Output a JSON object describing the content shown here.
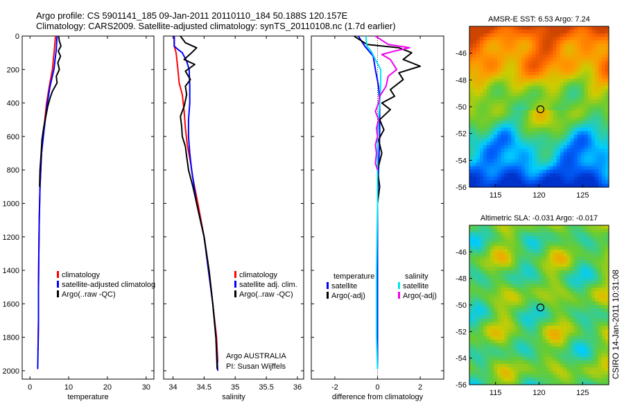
{
  "header": {
    "line1": "Argo profile: CS 5901141_185 09-Jan-2011 20110110_184 50.188S 120.157E",
    "line2": "Climatology: CARS2009. Satellite-adjusted climatology: synTS_20110108.nc (1.7d earlier)"
  },
  "side_text": "CSIRO 14-Jan-2011 10:31:08",
  "chart_data": [
    {
      "id": "temperature",
      "type": "line",
      "xlabel": "temperature",
      "xticks": [
        0,
        10,
        20,
        30
      ],
      "xlim": [
        -2,
        32
      ],
      "yticks": [
        0,
        200,
        400,
        600,
        800,
        1000,
        1200,
        1400,
        1600,
        1800,
        2000
      ],
      "ylim": [
        2050,
        0
      ],
      "legend": [
        "climatology",
        "satellite-adjusted climatolog",
        "Argo(..raw -QC)"
      ],
      "series": [
        {
          "name": "climatology",
          "color": "#ff0000",
          "points": [
            [
              6.6,
              0
            ],
            [
              6.3,
              80
            ],
            [
              5.8,
              200
            ],
            [
              5.0,
              300
            ],
            [
              4.3,
              400
            ],
            [
              3.6,
              550
            ],
            [
              3.0,
              700
            ],
            [
              2.6,
              900
            ],
            [
              2.4,
              1100
            ],
            [
              2.3,
              1300
            ],
            [
              2.2,
              1500
            ],
            [
              2.2,
              1700
            ],
            [
              2.1,
              1880
            ]
          ]
        },
        {
          "name": "satellite-adjusted climatolog",
          "color": "#0000ff",
          "points": [
            [
              7.0,
              0
            ],
            [
              6.8,
              80
            ],
            [
              6.2,
              200
            ],
            [
              5.2,
              300
            ],
            [
              4.5,
              400
            ],
            [
              3.7,
              550
            ],
            [
              3.0,
              700
            ],
            [
              2.6,
              900
            ],
            [
              2.4,
              1100
            ],
            [
              2.3,
              1300
            ],
            [
              2.2,
              1500
            ],
            [
              2.2,
              1700
            ],
            [
              2.0,
              1990
            ]
          ]
        },
        {
          "name": "Argo(..raw -QC)",
          "color": "#000000",
          "points": [
            [
              7.4,
              0
            ],
            [
              7.6,
              30
            ],
            [
              8.0,
              60
            ],
            [
              7.3,
              90
            ],
            [
              7.9,
              120
            ],
            [
              7.2,
              160
            ],
            [
              7.6,
              200
            ],
            [
              6.8,
              240
            ],
            [
              7.0,
              280
            ],
            [
              5.8,
              330
            ],
            [
              5.2,
              370
            ],
            [
              4.6,
              420
            ],
            [
              4.1,
              480
            ],
            [
              3.6,
              540
            ],
            [
              3.1,
              620
            ],
            [
              2.9,
              700
            ],
            [
              2.6,
              800
            ],
            [
              2.5,
              900
            ]
          ]
        }
      ]
    },
    {
      "id": "salinity",
      "type": "line",
      "xlabel": "salinity",
      "xticks": [
        34,
        34.5,
        35,
        35.5,
        36
      ],
      "xlim": [
        33.85,
        36.1
      ],
      "yticks": [
        0,
        200,
        400,
        600,
        800,
        1000,
        1200,
        1400,
        1600,
        1800,
        2000
      ],
      "ylim": [
        2050,
        0
      ],
      "legend": [
        "climatology",
        "satellite adj. clim.",
        "Argo(..raw -QC)"
      ],
      "annotation": [
        "Argo AUSTRALIA",
        "PI: Susan Wijffels"
      ],
      "series": [
        {
          "name": "climatology",
          "color": "#ff0000",
          "points": [
            [
              34.02,
              0
            ],
            [
              34.02,
              60
            ],
            [
              34.05,
              100
            ],
            [
              34.08,
              200
            ],
            [
              34.1,
              280
            ],
            [
              34.15,
              350
            ],
            [
              34.18,
              450
            ],
            [
              34.2,
              550
            ],
            [
              34.23,
              650
            ],
            [
              34.28,
              750
            ],
            [
              34.32,
              850
            ],
            [
              34.4,
              1000
            ],
            [
              34.5,
              1200
            ],
            [
              34.58,
              1400
            ],
            [
              34.64,
              1600
            ],
            [
              34.7,
              1800
            ],
            [
              34.72,
              1950
            ]
          ]
        },
        {
          "name": "satellite adj. clim.",
          "color": "#0000ff",
          "points": [
            [
              34.02,
              0
            ],
            [
              34.02,
              60
            ],
            [
              34.08,
              80
            ],
            [
              34.15,
              100
            ],
            [
              34.22,
              150
            ],
            [
              34.26,
              200
            ],
            [
              34.27,
              300
            ],
            [
              34.27,
              400
            ],
            [
              34.25,
              500
            ],
            [
              34.25,
              600
            ],
            [
              34.27,
              700
            ],
            [
              34.3,
              800
            ],
            [
              34.38,
              1000
            ],
            [
              34.5,
              1200
            ],
            [
              34.57,
              1400
            ],
            [
              34.64,
              1600
            ],
            [
              34.69,
              1800
            ],
            [
              34.72,
              2000
            ]
          ]
        },
        {
          "name": "Argo(..raw -QC)",
          "color": "#000000",
          "points": [
            [
              34.12,
              0
            ],
            [
              34.2,
              40
            ],
            [
              34.38,
              70
            ],
            [
              34.3,
              100
            ],
            [
              34.18,
              140
            ],
            [
              34.35,
              170
            ],
            [
              34.2,
              210
            ],
            [
              34.28,
              260
            ],
            [
              34.2,
              300
            ],
            [
              34.22,
              350
            ],
            [
              34.18,
              420
            ],
            [
              34.12,
              480
            ],
            [
              34.14,
              540
            ],
            [
              34.15,
              600
            ],
            [
              34.2,
              660
            ],
            [
              34.22,
              720
            ],
            [
              34.25,
              800
            ],
            [
              34.32,
              900
            ],
            [
              34.38,
              1000
            ],
            [
              34.5,
              1200
            ],
            [
              34.58,
              1400
            ],
            [
              34.64,
              1600
            ],
            [
              34.69,
              1800
            ],
            [
              34.71,
              1990
            ]
          ]
        }
      ]
    },
    {
      "id": "difference",
      "type": "line",
      "xlabel": "difference from climatology",
      "xticks": [
        -2,
        0,
        2
      ],
      "xlim": [
        -3.1,
        3.1
      ],
      "yticks": [
        0,
        200,
        400,
        600,
        800,
        1000,
        1200,
        1400,
        1600,
        1800,
        2000
      ],
      "ylim": [
        2050,
        0
      ],
      "legend_groups": [
        {
          "title": "temperature",
          "items": [
            "satellite",
            "Argo(-adj)"
          ]
        },
        {
          "title": "salinity",
          "items": [
            "satellite",
            "Argo(-adj)"
          ]
        }
      ],
      "series": [
        {
          "name": "temperature satellite",
          "color": "#0000ff",
          "points": [
            [
              -0.9,
              0
            ],
            [
              -0.6,
              60
            ],
            [
              -0.2,
              120
            ],
            [
              -0.1,
              200
            ],
            [
              0.05,
              300
            ],
            [
              0.1,
              400
            ],
            [
              0.1,
              600
            ],
            [
              0.05,
              800
            ],
            [
              0,
              1000
            ],
            [
              0,
              1400
            ],
            [
              0,
              1800
            ],
            [
              0,
              1990
            ]
          ]
        },
        {
          "name": "temperature Argo(-adj)",
          "color": "#000000",
          "points": [
            [
              -1.1,
              0
            ],
            [
              -0.5,
              50
            ],
            [
              1.0,
              70
            ],
            [
              1.6,
              100
            ],
            [
              1.2,
              140
            ],
            [
              2.0,
              180
            ],
            [
              1.0,
              220
            ],
            [
              1.2,
              260
            ],
            [
              0.6,
              320
            ],
            [
              0.8,
              360
            ],
            [
              0.2,
              400
            ],
            [
              0.6,
              440
            ],
            [
              0.1,
              500
            ],
            [
              0.3,
              560
            ],
            [
              0.05,
              620
            ],
            [
              0.2,
              700
            ],
            [
              0,
              800
            ],
            [
              0.1,
              900
            ],
            [
              0,
              1000
            ]
          ]
        },
        {
          "name": "salinity satellite",
          "color": "#00e5ee",
          "points": [
            [
              -0.55,
              0
            ],
            [
              -0.5,
              60
            ],
            [
              -0.3,
              90
            ],
            [
              -0.1,
              140
            ],
            [
              0.15,
              200
            ],
            [
              0.15,
              300
            ],
            [
              0.1,
              400
            ],
            [
              0.05,
              500
            ],
            [
              0,
              600
            ],
            [
              0,
              800
            ],
            [
              0,
              1000
            ],
            [
              -0.05,
              1400
            ],
            [
              -0.05,
              1800
            ],
            [
              0,
              1990
            ]
          ]
        },
        {
          "name": "salinity Argo(-adj)",
          "color": "#ee00ee",
          "points": [
            [
              -0.1,
              0
            ],
            [
              0.5,
              50
            ],
            [
              1.5,
              70
            ],
            [
              0.8,
              90
            ],
            [
              0.2,
              110
            ],
            [
              0.6,
              140
            ],
            [
              0.9,
              200
            ],
            [
              0.5,
              240
            ],
            [
              0.4,
              300
            ],
            [
              0.1,
              360
            ],
            [
              0.05,
              400
            ],
            [
              -0.1,
              450
            ],
            [
              0.05,
              500
            ],
            [
              -0.05,
              550
            ],
            [
              0,
              600
            ],
            [
              -0.1,
              650
            ],
            [
              -0.05,
              700
            ],
            [
              -0.1,
              760
            ],
            [
              0,
              800
            ]
          ]
        }
      ]
    },
    {
      "id": "sst_map",
      "type": "heatmap",
      "title": "AMSR-E SST: 6.53 Argo: 7.24",
      "xticks": [
        115,
        120,
        125
      ],
      "xlim": [
        112,
        128
      ],
      "yticks": [
        -46,
        -48,
        -50,
        -52,
        -54,
        -56
      ],
      "ylim": [
        -56,
        -44
      ],
      "float_position": [
        120.157,
        -50.188
      ],
      "colorscale": [
        "#0033cc",
        "#0066ff",
        "#00ccff",
        "#33cc99",
        "#66cc33",
        "#cccc00",
        "#ff9900",
        "#ff6600",
        "#cc4400"
      ]
    },
    {
      "id": "sla_map",
      "type": "heatmap",
      "title": "Altimetric SLA: -0.031 Argo: -0.017",
      "xticks": [
        115,
        120,
        125
      ],
      "xlim": [
        112,
        128
      ],
      "yticks": [
        -46,
        -48,
        -50,
        -52,
        -54,
        -56
      ],
      "ylim": [
        -56,
        -44
      ],
      "float_position": [
        120.157,
        -50.188
      ],
      "colorscale": [
        "#0033cc",
        "#0066ff",
        "#00ccff",
        "#33cc99",
        "#66cc33",
        "#cccc00",
        "#ff9900",
        "#ff6600",
        "#cc4400"
      ]
    }
  ]
}
